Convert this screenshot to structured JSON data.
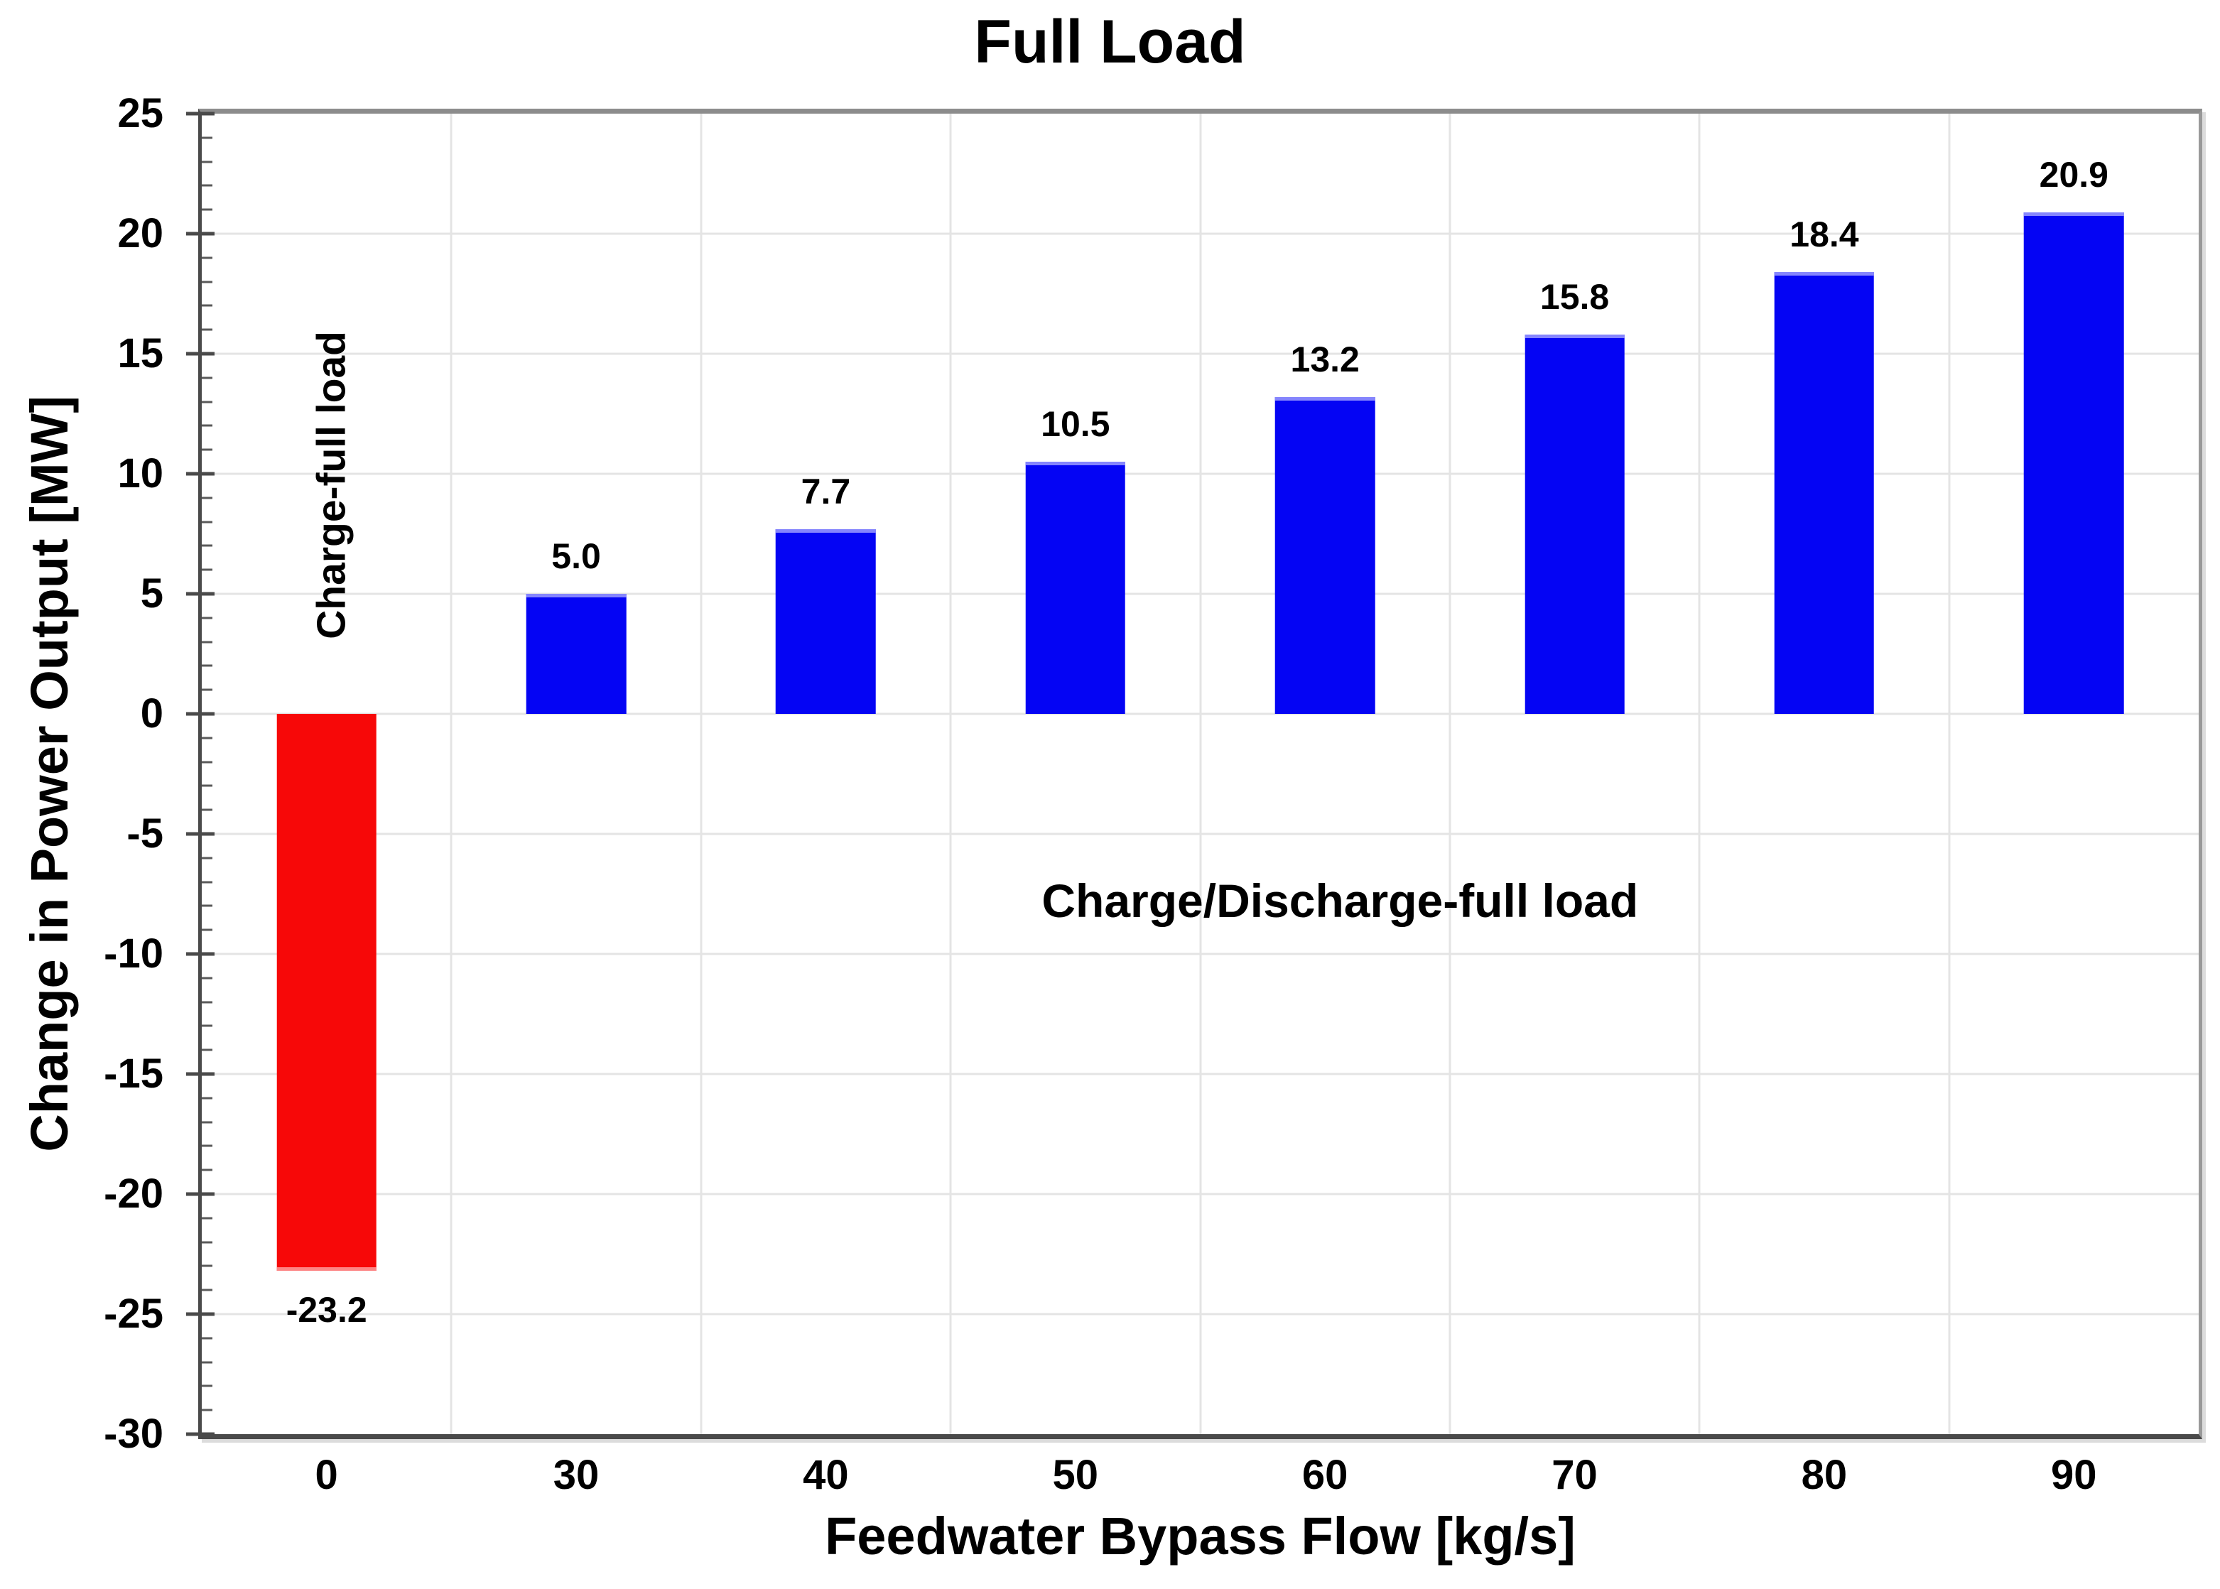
{
  "chart_data": {
    "type": "bar",
    "title": "Full Load",
    "xlabel": "Feedwater Bypass Flow [kg/s]",
    "ylabel": "Change in Power Output [MW]",
    "categories": [
      "0",
      "30",
      "40",
      "50",
      "60",
      "70",
      "80",
      "90"
    ],
    "values": [
      -23.2,
      5.0,
      7.7,
      10.5,
      13.2,
      15.8,
      18.4,
      20.9
    ],
    "value_labels": [
      "-23.2",
      "5.0",
      "7.7",
      "10.5",
      "13.2",
      "15.8",
      "18.4",
      "20.9"
    ],
    "ylim": [
      -30,
      25
    ],
    "ytick_step": 5,
    "ytick_values": [
      25,
      20,
      15,
      10,
      5,
      0,
      -5,
      -10,
      -15,
      -20,
      -25,
      -30
    ],
    "yminor_step": 1,
    "grid": true,
    "legend_position": "none",
    "bar_width_frac_of_slot": 0.4,
    "annotations": [
      {
        "text": "Charge-full load",
        "orientation": "vertical"
      },
      {
        "text": "Charge/Discharge-full load",
        "orientation": "horizontal"
      }
    ]
  },
  "colors": {
    "bar_positive": "#0404f4",
    "bar_positive_highlight": "#8585fd",
    "bar_negative": "#f70808",
    "bar_negative_highlight": "#fd8585",
    "gridline": "#e4e4e4",
    "axis": "#4a4a4a",
    "frame_top": "#8c8c8c",
    "frame_right": "#999999",
    "text": "#000000"
  }
}
